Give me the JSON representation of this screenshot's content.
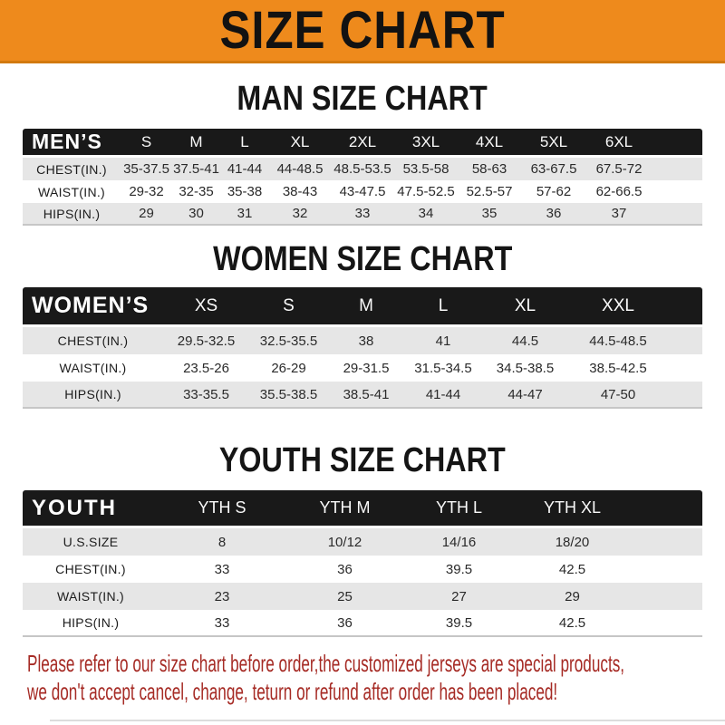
{
  "banner": {
    "title": "SIZE CHART"
  },
  "sections": [
    {
      "title": "MAN SIZE CHART",
      "header_label": "MEN’S",
      "columns": [
        "S",
        "M",
        "L",
        "XL",
        "2XL",
        "3XL",
        "4XL",
        "5XL",
        "6XL"
      ],
      "rows": [
        {
          "label": "CHEST(IN.)",
          "values": [
            "35-37.5",
            "37.5-41",
            "41-44",
            "44-48.5",
            "48.5-53.5",
            "53.5-58",
            "58-63",
            "63-67.5",
            "67.5-72"
          ]
        },
        {
          "label": "WAIST(IN.)",
          "values": [
            "29-32",
            "32-35",
            "35-38",
            "38-43",
            "43-47.5",
            "47.5-52.5",
            "52.5-57",
            "57-62",
            "62-66.5"
          ]
        },
        {
          "label": "HIPS(IN.)",
          "values": [
            "29",
            "30",
            "31",
            "32",
            "33",
            "34",
            "35",
            "36",
            "37"
          ]
        }
      ]
    },
    {
      "title": "WOMEN SIZE CHART",
      "header_label": "WOMEN’S",
      "columns": [
        "XS",
        "S",
        "M",
        "L",
        "XL",
        "XXL"
      ],
      "rows": [
        {
          "label": "CHEST(IN.)",
          "values": [
            "29.5-32.5",
            "32.5-35.5",
            "38",
            "41",
            "44.5",
            "44.5-48.5"
          ]
        },
        {
          "label": "WAIST(IN.)",
          "values": [
            "23.5-26",
            "26-29",
            "29-31.5",
            "31.5-34.5",
            "34.5-38.5",
            "38.5-42.5"
          ]
        },
        {
          "label": "HIPS(IN.)",
          "values": [
            "33-35.5",
            "35.5-38.5",
            "38.5-41",
            "41-44",
            "44-47",
            "47-50"
          ]
        }
      ]
    },
    {
      "title": "YOUTH SIZE CHART",
      "header_label": "YOUTH",
      "columns": [
        "YTH S",
        "YTH M",
        "YTH L",
        "YTH XL"
      ],
      "rows": [
        {
          "label": "U.S.SIZE",
          "values": [
            "8",
            "10/12",
            "14/16",
            "18/20"
          ]
        },
        {
          "label": "CHEST(IN.)",
          "values": [
            "33",
            "36",
            "39.5",
            "42.5"
          ]
        },
        {
          "label": "WAIST(IN.)",
          "values": [
            "23",
            "25",
            "27",
            "29"
          ]
        },
        {
          "label": "HIPS(IN.)",
          "values": [
            "33",
            "36",
            "39.5",
            "42.5"
          ]
        }
      ]
    }
  ],
  "footer": {
    "line1": "Please refer to our size chart before order,the customized jerseys are special products,",
    "line2": "we don't accept cancel, change, teturn or refund after order has been placed!"
  },
  "colors": {
    "banner_bg": "#ee8a1c",
    "banner_border": "#d2790f",
    "header_bar": "#191919",
    "row_stripe": "#e6e6e6",
    "table_bottom_rule": "#c6c6c6",
    "footer_text": "#a62b25"
  }
}
